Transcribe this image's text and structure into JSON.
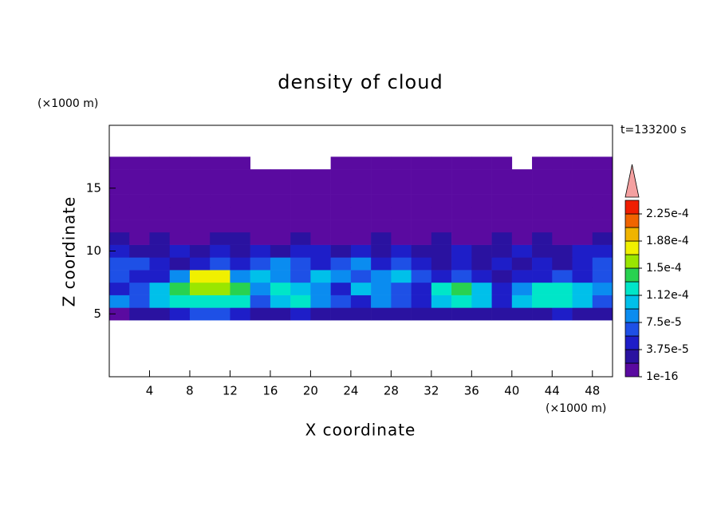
{
  "chart_data": {
    "type": "contour",
    "title": "density of cloud",
    "x_label": "X coordinate",
    "y_label": "Z coordinate",
    "x_unit": "(×1000 m)",
    "y_unit": "(×1000 m)",
    "annotation": "t=133200 s",
    "xlim": [
      0,
      50
    ],
    "ylim": [
      0,
      20
    ],
    "xticks": [
      4,
      8,
      12,
      16,
      20,
      24,
      28,
      32,
      36,
      40,
      44,
      48
    ],
    "yticks": [
      5,
      10,
      15
    ],
    "x": [
      1,
      3,
      5,
      7,
      9,
      11,
      13,
      15,
      17,
      19,
      21,
      23,
      25,
      27,
      29,
      31,
      33,
      35,
      37,
      39,
      41,
      43,
      45,
      47,
      49
    ],
    "z": [
      5,
      6,
      7,
      8,
      9,
      10,
      11,
      12,
      13,
      14,
      15,
      16,
      17
    ],
    "values": [
      [
        1e-05,
        2.5e-05,
        2.5e-05,
        4.5e-05,
        6e-05,
        6e-05,
        4.5e-05,
        2.5e-05,
        2.5e-05,
        4.5e-05,
        2.5e-05,
        2.5e-05,
        2.5e-05,
        2.5e-05,
        2.5e-05,
        2.5e-05,
        2.5e-05,
        2.5e-05,
        2.5e-05,
        2.5e-05,
        2.5e-05,
        2.5e-05,
        4.5e-05,
        2.5e-05,
        2.5e-05
      ],
      [
        8e-05,
        6e-05,
        0.0001,
        0.00012,
        0.00012,
        0.00012,
        0.00012,
        6e-05,
        0.0001,
        0.00012,
        8e-05,
        6e-05,
        4.5e-05,
        8e-05,
        6e-05,
        4.5e-05,
        0.0001,
        0.00012,
        0.0001,
        4.5e-05,
        0.0001,
        0.00012,
        0.00012,
        0.0001,
        6e-05
      ],
      [
        4.5e-05,
        6e-05,
        0.0001,
        0.00014,
        0.00016,
        0.00016,
        0.00014,
        8e-05,
        0.00012,
        0.0001,
        8e-05,
        4.5e-05,
        0.0001,
        8e-05,
        6e-05,
        4.5e-05,
        0.00012,
        0.00014,
        0.0001,
        4.5e-05,
        8e-05,
        0.00012,
        0.00012,
        0.0001,
        8e-05
      ],
      [
        6e-05,
        4.5e-05,
        4.5e-05,
        8e-05,
        0.00018,
        0.00018,
        8e-05,
        0.0001,
        8e-05,
        6e-05,
        0.0001,
        8e-05,
        6e-05,
        8e-05,
        0.0001,
        6e-05,
        4.5e-05,
        6e-05,
        4.5e-05,
        2.5e-05,
        4.5e-05,
        4.5e-05,
        6e-05,
        4.5e-05,
        6e-05
      ],
      [
        6e-05,
        6e-05,
        4.5e-05,
        2.5e-05,
        4.5e-05,
        6e-05,
        4.5e-05,
        6e-05,
        8e-05,
        6e-05,
        4.5e-05,
        6e-05,
        8e-05,
        4.5e-05,
        6e-05,
        4.5e-05,
        2.5e-05,
        4.5e-05,
        2.5e-05,
        4.5e-05,
        2.5e-05,
        4.5e-05,
        2.5e-05,
        4.5e-05,
        6e-05
      ],
      [
        4.5e-05,
        2.5e-05,
        2.5e-05,
        4.5e-05,
        2.5e-05,
        4.5e-05,
        2.5e-05,
        4.5e-05,
        2.5e-05,
        4.5e-05,
        4.5e-05,
        2.5e-05,
        4.5e-05,
        2.5e-05,
        4.5e-05,
        2.5e-05,
        2.5e-05,
        4.5e-05,
        2.5e-05,
        2.5e-05,
        4.5e-05,
        2.5e-05,
        2.5e-05,
        4.5e-05,
        4.5e-05
      ],
      [
        2.5e-05,
        1e-05,
        2.5e-05,
        1e-05,
        1e-05,
        2.5e-05,
        2.5e-05,
        1e-05,
        1e-05,
        2.5e-05,
        1e-05,
        1e-05,
        1e-05,
        2.5e-05,
        1e-05,
        1e-05,
        2.5e-05,
        1e-05,
        1e-05,
        2.5e-05,
        1e-05,
        2.5e-05,
        1e-05,
        1e-05,
        2.5e-05
      ],
      [
        1e-05,
        1e-05,
        1e-05,
        1e-05,
        1e-05,
        1e-05,
        1e-05,
        1e-05,
        1e-05,
        1e-05,
        1e-05,
        1e-05,
        1e-05,
        1e-05,
        1e-05,
        1e-05,
        1e-05,
        1e-05,
        1e-05,
        1e-05,
        1e-05,
        1e-05,
        1e-05,
        1e-05,
        1e-05
      ],
      [
        1e-05,
        1e-05,
        1e-05,
        1e-05,
        1e-05,
        1e-05,
        1e-05,
        1e-05,
        1e-05,
        1e-05,
        1e-05,
        1e-05,
        1e-05,
        1e-05,
        1e-05,
        1e-05,
        1e-05,
        1e-05,
        1e-05,
        1e-05,
        1e-05,
        1e-05,
        1e-05,
        1e-05,
        1e-05
      ],
      [
        1e-05,
        1e-05,
        1e-05,
        1e-05,
        1e-05,
        1e-05,
        1e-05,
        1e-05,
        1e-05,
        1e-05,
        1e-05,
        1e-05,
        1e-05,
        1e-05,
        1e-05,
        1e-05,
        1e-05,
        1e-05,
        1e-05,
        1e-05,
        1e-05,
        1e-05,
        1e-05,
        1e-05,
        1e-05
      ],
      [
        1e-05,
        1e-05,
        1e-05,
        1e-05,
        1e-05,
        1e-05,
        1e-05,
        1e-05,
        1e-05,
        1e-05,
        1e-05,
        1e-05,
        1e-05,
        1e-05,
        1e-05,
        1e-05,
        1e-05,
        1e-05,
        1e-05,
        1e-05,
        1e-05,
        1e-05,
        1e-05,
        1e-05,
        1e-05
      ],
      [
        1e-05,
        1e-05,
        1e-05,
        1e-05,
        1e-05,
        1e-05,
        1e-05,
        1e-05,
        1e-05,
        1e-05,
        1e-05,
        1e-05,
        1e-05,
        1e-05,
        1e-05,
        1e-05,
        1e-05,
        1e-05,
        1e-05,
        1e-05,
        1e-05,
        1e-05,
        1e-05,
        1e-05,
        1e-05
      ],
      [
        1e-05,
        1e-05,
        1e-05,
        1e-05,
        1e-05,
        1e-05,
        1e-05,
        null,
        null,
        null,
        null,
        1e-05,
        1e-05,
        1e-05,
        1e-05,
        1e-05,
        1e-05,
        1e-05,
        1e-05,
        1e-05,
        null,
        1e-05,
        1e-05,
        1e-05,
        1e-05
      ]
    ],
    "colorbar": {
      "levels": [
        1e-16,
        1.875e-05,
        3.75e-05,
        5.625e-05,
        7.5e-05,
        9.375e-05,
        0.0001125,
        0.00013125,
        0.00015,
        0.00016875,
        0.0001875,
        0.00020625,
        0.000225,
        0.00024375
      ],
      "colors": [
        "#5a0aa0",
        "#2a12a0",
        "#1e1ec8",
        "#1e50e6",
        "#0a8cf0",
        "#00c0ea",
        "#00e6c8",
        "#28d250",
        "#9ae600",
        "#f0f000",
        "#f0b400",
        "#f06400",
        "#f01e00"
      ],
      "over_color": "#f4a0a0",
      "ticks": [
        {
          "value": 1e-16,
          "label": "1e-16"
        },
        {
          "value": 3.75e-05,
          "label": "3.75e-5"
        },
        {
          "value": 7.5e-05,
          "label": "7.5e-5"
        },
        {
          "value": 0.0001125,
          "label": "1.12e-4"
        },
        {
          "value": 0.00015,
          "label": "1.5e-4"
        },
        {
          "value": 0.0001875,
          "label": "1.88e-4"
        },
        {
          "value": 0.000225,
          "label": "2.25e-4"
        }
      ]
    }
  }
}
